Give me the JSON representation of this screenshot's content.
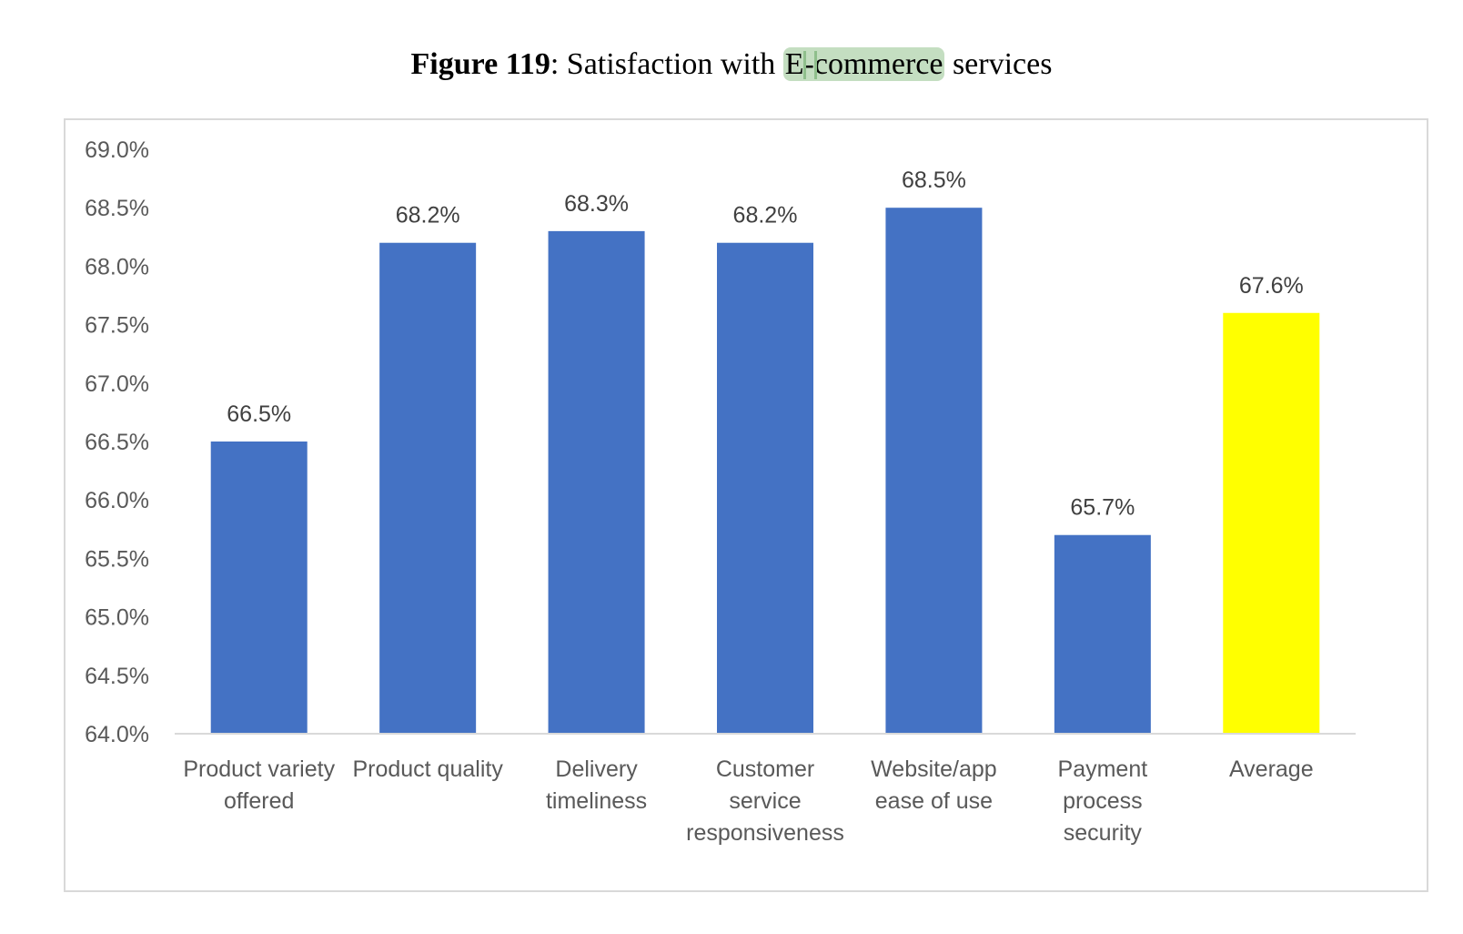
{
  "caption": {
    "figure_label": "Figure 119",
    "text_before": ": Satisfaction with ",
    "highlighted": "E-commerce",
    "text_after": " services",
    "highlight_color": "#c4dec1"
  },
  "chart_data": {
    "type": "bar",
    "categories": [
      [
        "Product variety",
        "offered"
      ],
      [
        "Product quality"
      ],
      [
        "Delivery",
        "timeliness"
      ],
      [
        "Customer",
        "service",
        "responsiveness"
      ],
      [
        "Website/app",
        "ease of use"
      ],
      [
        "Payment",
        "process",
        "security"
      ],
      [
        "Average"
      ]
    ],
    "values": [
      66.5,
      68.2,
      68.3,
      68.2,
      68.5,
      65.7,
      67.6
    ],
    "data_labels": [
      "66.5%",
      "68.2%",
      "68.3%",
      "68.2%",
      "68.5%",
      "65.7%",
      "67.6%"
    ],
    "bar_colors": [
      "#4472c4",
      "#4472c4",
      "#4472c4",
      "#4472c4",
      "#4472c4",
      "#4472c4",
      "#ffff00"
    ],
    "ylim": [
      64.0,
      69.0
    ],
    "yticks": [
      "64.0%",
      "64.5%",
      "65.0%",
      "65.5%",
      "66.0%",
      "66.5%",
      "67.0%",
      "67.5%",
      "68.0%",
      "68.5%",
      "69.0%"
    ],
    "ytick_values": [
      64.0,
      64.5,
      65.0,
      65.5,
      66.0,
      66.5,
      67.0,
      67.5,
      68.0,
      68.5,
      69.0
    ],
    "grid": false,
    "legend": "none"
  }
}
